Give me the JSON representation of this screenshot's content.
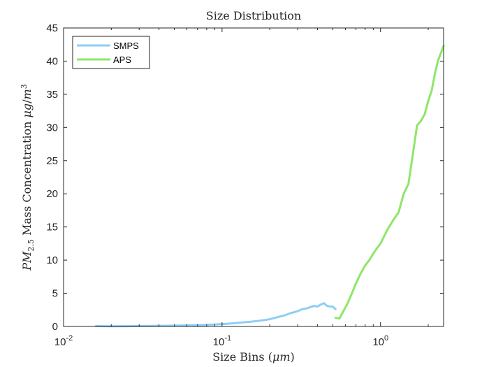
{
  "chart_data": {
    "type": "line",
    "title": "Size Distribution",
    "xlabel": "Size Bins (μm)",
    "ylabel": "PM2.5 Mass Concentration μg/m3",
    "xscale": "log",
    "xlim": [
      0.01,
      2.5
    ],
    "ylim": [
      0,
      45
    ],
    "grid": false,
    "legend_location": "top-left",
    "x_ticks": [
      {
        "value": 0.01,
        "base": "10",
        "exp": "-2"
      },
      {
        "value": 0.1,
        "base": "10",
        "exp": "-1"
      },
      {
        "value": 1,
        "base": "10",
        "exp": "0"
      }
    ],
    "y_ticks": [
      0,
      5,
      10,
      15,
      20,
      25,
      30,
      35,
      40,
      45
    ],
    "series": [
      {
        "name": "SMPS",
        "color": "#8fcdf5",
        "x": [
          0.016,
          0.02,
          0.025,
          0.03,
          0.04,
          0.05,
          0.06,
          0.07,
          0.08,
          0.09,
          0.1,
          0.11,
          0.12,
          0.13,
          0.15,
          0.17,
          0.19,
          0.2,
          0.22,
          0.25,
          0.27,
          0.3,
          0.32,
          0.34,
          0.36,
          0.38,
          0.4,
          0.42,
          0.44,
          0.46,
          0.48,
          0.5,
          0.52
        ],
        "y": [
          0.05,
          0.03,
          0.04,
          0.06,
          0.09,
          0.12,
          0.16,
          0.2,
          0.25,
          0.3,
          0.35,
          0.42,
          0.5,
          0.58,
          0.7,
          0.85,
          1.0,
          1.1,
          1.35,
          1.7,
          2.0,
          2.3,
          2.6,
          2.7,
          2.9,
          3.1,
          3.0,
          3.3,
          3.5,
          3.1,
          3.0,
          3.0,
          2.6
        ]
      },
      {
        "name": "APS",
        "color": "#8ee66a",
        "x": [
          0.52,
          0.55,
          0.58,
          0.62,
          0.66,
          0.7,
          0.75,
          0.8,
          0.85,
          0.9,
          0.95,
          1.0,
          1.1,
          1.2,
          1.3,
          1.4,
          1.5,
          1.6,
          1.7,
          1.8,
          1.9,
          2.0,
          2.1,
          2.2,
          2.3,
          2.5
        ],
        "y": [
          1.3,
          1.2,
          2.2,
          3.5,
          5.0,
          6.5,
          8.0,
          9.2,
          10.0,
          11.0,
          11.8,
          12.5,
          14.5,
          16.0,
          17.2,
          20.0,
          21.5,
          26.0,
          30.3,
          31.0,
          32.0,
          34.0,
          35.5,
          38.0,
          40.0,
          42.3
        ]
      }
    ]
  }
}
